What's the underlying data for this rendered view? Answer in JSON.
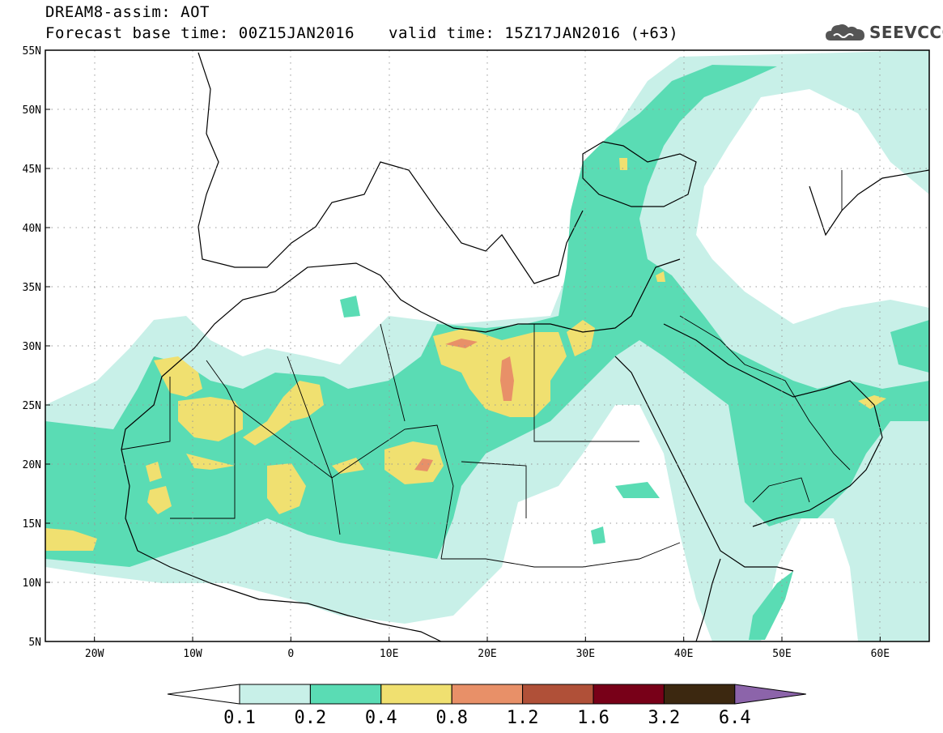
{
  "header": {
    "title": "DREAM8-assim: AOT",
    "base_time": "Forecast base time: 00Z15JAN2016",
    "valid_time": "valid time: 15Z17JAN2016 (+63)",
    "logo_text": "SEEVCCC"
  },
  "map": {
    "lon_range": [
      -25,
      65
    ],
    "lat_range": [
      5,
      55
    ],
    "lat_labels": [
      "55N",
      "50N",
      "45N",
      "40N",
      "35N",
      "30N",
      "25N",
      "20N",
      "15N",
      "10N",
      "5N"
    ],
    "lat_values": [
      55,
      50,
      45,
      40,
      35,
      30,
      25,
      20,
      15,
      10,
      5
    ],
    "lon_labels": [
      "20W",
      "10W",
      "0",
      "10E",
      "20E",
      "30E",
      "40E",
      "50E",
      "60E"
    ],
    "lon_values": [
      -20,
      -10,
      0,
      10,
      20,
      30,
      40,
      50,
      60
    ],
    "grid": "dotted"
  },
  "colorbar": {
    "levels": [
      "0.1",
      "0.2",
      "0.4",
      "0.8",
      "1.2",
      "1.6",
      "3.2",
      "6.4"
    ],
    "colors": [
      "#c8f0e8",
      "#5adcb4",
      "#f0e070",
      "#e89068",
      "#b05038",
      "#780018",
      "#3c2810",
      "#8c64aa"
    ]
  }
}
